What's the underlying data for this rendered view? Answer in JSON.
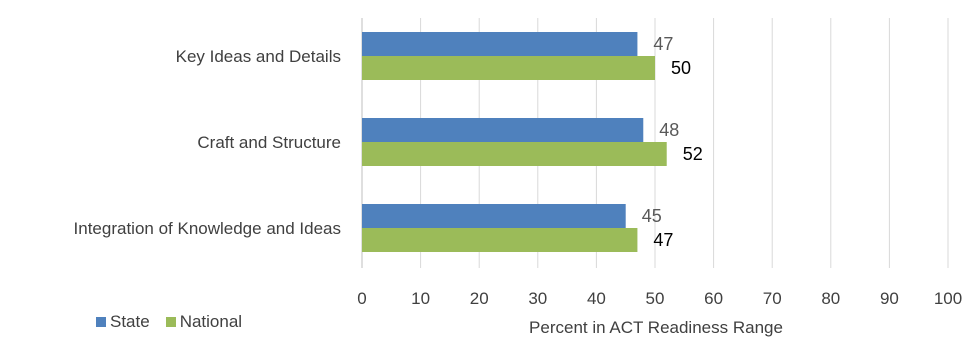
{
  "chart_data": {
    "type": "bar",
    "orientation": "horizontal",
    "title": "",
    "categories": [
      "Key Ideas and Details",
      "Craft and Structure",
      "Integration of Knowledge and Ideas"
    ],
    "series": [
      {
        "name": "State",
        "values": [
          47,
          48,
          45
        ],
        "color": "#4f81bd"
      },
      {
        "name": "National",
        "values": [
          50,
          52,
          47
        ],
        "color": "#9bbb59"
      }
    ],
    "xlabel": "Percent in ACT Readiness Range",
    "xlim": [
      0,
      100
    ],
    "xticks": [
      0,
      10,
      20,
      30,
      40,
      50,
      60,
      70,
      80,
      90,
      100
    ],
    "grid": true,
    "legend_position": "bottom-left",
    "label_colors": [
      "#595959",
      "#000000"
    ]
  }
}
